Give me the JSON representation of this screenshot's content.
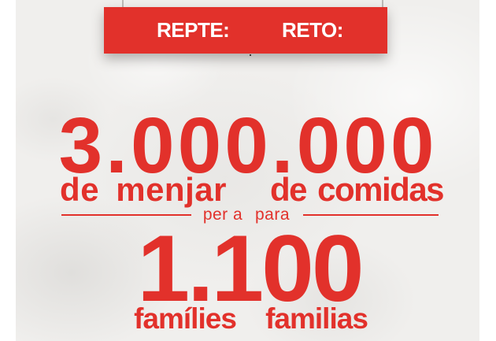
{
  "colors": {
    "accent_red": "#e2312b",
    "banner_red": "#e2312b",
    "banner_text": "#ffffff",
    "background": "#f0efed",
    "page_margin": "#ffffff",
    "string_gray": "#bdbab7"
  },
  "banner": {
    "catalan_label": "REPTE:",
    "spanish_label": "RETO:"
  },
  "headline": {
    "meals_number": "3.000.000",
    "meals_label_catalan": "de menjar",
    "meals_label_spanish": "de comidas",
    "connector_catalan": "per a",
    "connector_spanish": "para",
    "families_number": "1.100",
    "families_label_catalan": "famílies",
    "families_label_spanish": "familias"
  }
}
